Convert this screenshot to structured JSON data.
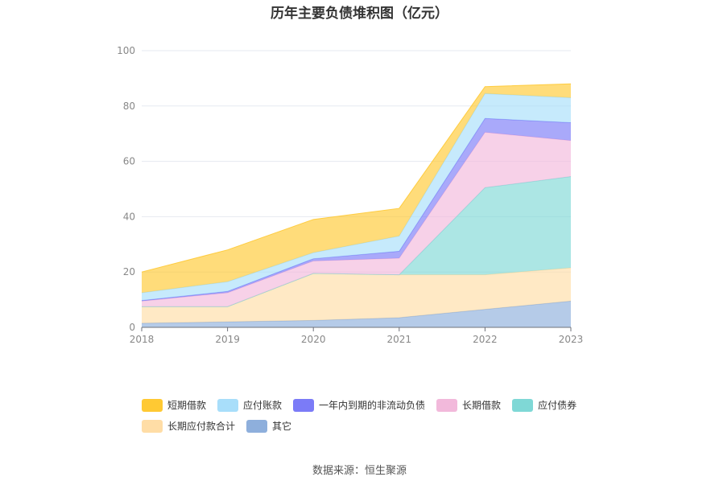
{
  "source_label": "数据来源：恒生聚源",
  "chart_data": {
    "type": "area",
    "stacked": true,
    "title": "历年主要负债堆积图（亿元）",
    "xlabel": "",
    "ylabel": "",
    "x": [
      "2018",
      "2019",
      "2020",
      "2021",
      "2022",
      "2023"
    ],
    "ylim": [
      0,
      100
    ],
    "yticks": [
      0,
      20,
      40,
      60,
      80,
      100
    ],
    "grid": true,
    "legend_position": "bottom",
    "series_stack_order": [
      "其它",
      "长期应付款合计",
      "应付债券",
      "长期借款",
      "一年内到期的非流动负债",
      "应付账款",
      "短期借款"
    ],
    "series": [
      {
        "name": "短期借款",
        "color": "#FFC933",
        "values": [
          7.5,
          11.5,
          12.0,
          10.0,
          2.5,
          5.0
        ]
      },
      {
        "name": "应付账款",
        "color": "#A8DEFA",
        "values": [
          2.8,
          3.5,
          2.2,
          5.5,
          9.0,
          9.0
        ]
      },
      {
        "name": "一年内到期的非流动负债",
        "color": "#7B7BF7",
        "values": [
          0.2,
          0.5,
          0.8,
          2.5,
          5.0,
          6.5
        ]
      },
      {
        "name": "长期借款",
        "color": "#F2B9DB",
        "values": [
          2.0,
          5.0,
          4.5,
          6.0,
          20.0,
          13.0
        ]
      },
      {
        "name": "应付债券",
        "color": "#7FD8D6",
        "values": [
          0,
          0,
          0,
          0,
          31.5,
          33.0
        ]
      },
      {
        "name": "长期应付款合计",
        "color": "#FFDDA6",
        "values": [
          6.0,
          5.5,
          17.0,
          15.5,
          12.5,
          12.0
        ]
      },
      {
        "name": "其它",
        "color": "#8EAFDC",
        "values": [
          1.5,
          2.0,
          2.5,
          3.5,
          6.5,
          9.5
        ]
      }
    ]
  }
}
